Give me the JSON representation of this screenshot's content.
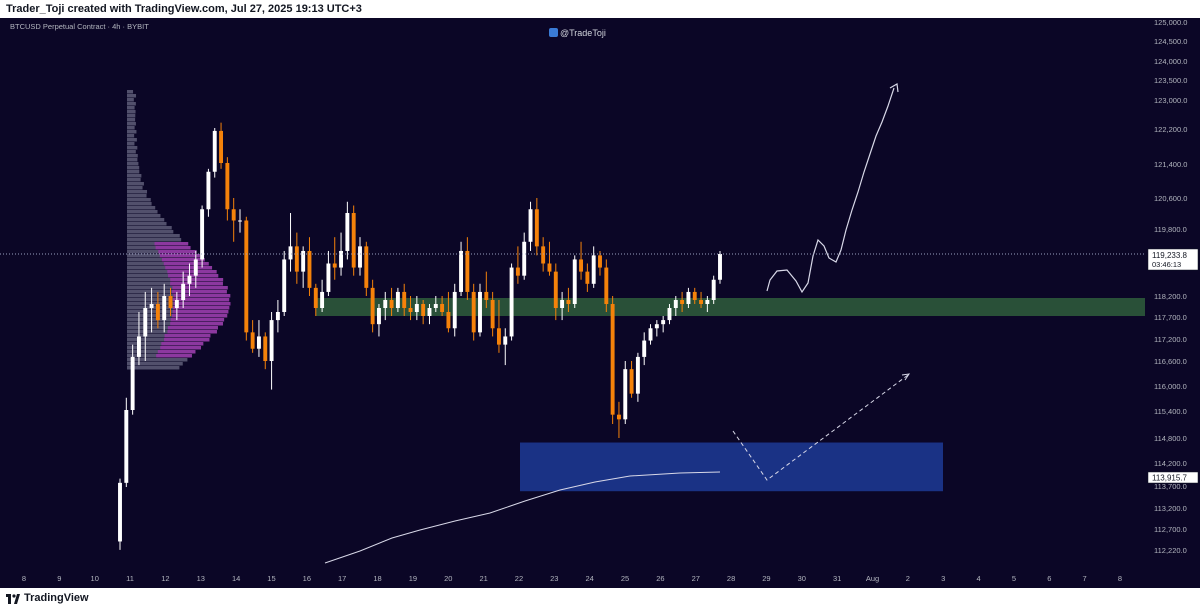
{
  "header": {
    "caption": "Trader_Toji created with TradingView.com, Jul 27, 2025 19:13 UTC+3"
  },
  "chart_header": {
    "symbol": "BTCUSD Perpetual Contract · 4h · BYBIT",
    "watermark": "@TradeToji"
  },
  "price_scale": {
    "ticks": [
      "125,000.0",
      "124,500.0",
      "124,000.0",
      "123,500.0",
      "123,000.0",
      "122,200.0",
      "121,400.0",
      "120,600.0",
      "119,800.0",
      "118,200.0",
      "117,700.0",
      "117,200.0",
      "116,600.0",
      "116,000.0",
      "115,400.0",
      "114,800.0",
      "114,200.0",
      "113,700.0",
      "113,200.0",
      "112,700.0",
      "112,220.0"
    ],
    "current_price": "119,233.8",
    "countdown": "03:46:13",
    "marked_price": "113,915.7"
  },
  "time_axis": {
    "labels": [
      "8",
      "9",
      "10",
      "11",
      "12",
      "13",
      "14",
      "15",
      "16",
      "17",
      "18",
      "19",
      "20",
      "21",
      "22",
      "23",
      "24",
      "25",
      "26",
      "27",
      "28",
      "29",
      "30",
      "31",
      "Aug",
      "2",
      "3",
      "4",
      "5",
      "6",
      "7",
      "8"
    ]
  },
  "footer": {
    "brand": "TradingView"
  },
  "chart_data": {
    "type": "candlestick",
    "symbol": "BTCUSD",
    "interval": "4h",
    "exchange": "BYBIT",
    "ylim": [
      112200,
      125000
    ],
    "last_price": 119233.8,
    "marked_price": 113915.7,
    "zones": [
      {
        "name": "support",
        "low": 117700,
        "high": 118150,
        "color": "#2f5e3c"
      },
      {
        "name": "demand",
        "low": 113600,
        "high": 114700,
        "color": "#1e3d9e"
      }
    ],
    "candles": [
      {
        "o": 112400,
        "h": 113900,
        "l": 112200,
        "c": 113800
      },
      {
        "o": 113800,
        "h": 115700,
        "l": 113700,
        "c": 115400
      },
      {
        "o": 115400,
        "h": 117000,
        "l": 115300,
        "c": 116700
      },
      {
        "o": 116700,
        "h": 117800,
        "l": 116500,
        "c": 117200
      },
      {
        "o": 117200,
        "h": 118300,
        "l": 116600,
        "c": 117900
      },
      {
        "o": 117900,
        "h": 118400,
        "l": 117300,
        "c": 118000
      },
      {
        "o": 118000,
        "h": 118300,
        "l": 117400,
        "c": 117600
      },
      {
        "o": 117600,
        "h": 118500,
        "l": 117300,
        "c": 118200
      },
      {
        "o": 118200,
        "h": 118400,
        "l": 117700,
        "c": 117900
      },
      {
        "o": 117900,
        "h": 118300,
        "l": 117600,
        "c": 118100
      },
      {
        "o": 118100,
        "h": 118800,
        "l": 117900,
        "c": 118500
      },
      {
        "o": 118500,
        "h": 119000,
        "l": 118200,
        "c": 118700
      },
      {
        "o": 118700,
        "h": 119300,
        "l": 118400,
        "c": 119100
      },
      {
        "o": 119100,
        "h": 120400,
        "l": 118900,
        "c": 120300
      },
      {
        "o": 120300,
        "h": 121600,
        "l": 120100,
        "c": 121500
      },
      {
        "o": 121500,
        "h": 123000,
        "l": 121300,
        "c": 122900
      },
      {
        "o": 122900,
        "h": 123100,
        "l": 121600,
        "c": 121800
      },
      {
        "o": 121800,
        "h": 122000,
        "l": 120000,
        "c": 120300
      },
      {
        "o": 120300,
        "h": 120600,
        "l": 119500,
        "c": 120000
      },
      {
        "o": 120000,
        "h": 120300,
        "l": 119700,
        "c": 120000
      },
      {
        "o": 120000,
        "h": 120100,
        "l": 117100,
        "c": 117300
      },
      {
        "o": 117300,
        "h": 117600,
        "l": 116800,
        "c": 116900
      },
      {
        "o": 116900,
        "h": 117600,
        "l": 116700,
        "c": 117200
      },
      {
        "o": 117200,
        "h": 117300,
        "l": 116400,
        "c": 116600
      },
      {
        "o": 116600,
        "h": 117800,
        "l": 115900,
        "c": 117600
      },
      {
        "o": 117600,
        "h": 118100,
        "l": 117300,
        "c": 117800
      },
      {
        "o": 117800,
        "h": 119300,
        "l": 117700,
        "c": 119100
      },
      {
        "o": 119100,
        "h": 120200,
        "l": 118800,
        "c": 119400
      },
      {
        "o": 119400,
        "h": 119700,
        "l": 118500,
        "c": 118800
      },
      {
        "o": 118800,
        "h": 119400,
        "l": 118400,
        "c": 119300
      },
      {
        "o": 119300,
        "h": 119600,
        "l": 118200,
        "c": 118400
      },
      {
        "o": 118400,
        "h": 118500,
        "l": 117700,
        "c": 117900
      },
      {
        "o": 117900,
        "h": 118600,
        "l": 117800,
        "c": 118300
      },
      {
        "o": 118300,
        "h": 119300,
        "l": 118200,
        "c": 119000
      },
      {
        "o": 119000,
        "h": 119600,
        "l": 118600,
        "c": 118900
      },
      {
        "o": 118900,
        "h": 119700,
        "l": 118700,
        "c": 119300
      },
      {
        "o": 119300,
        "h": 120500,
        "l": 119100,
        "c": 120200
      },
      {
        "o": 120200,
        "h": 120400,
        "l": 118700,
        "c": 118900
      },
      {
        "o": 118900,
        "h": 119600,
        "l": 118700,
        "c": 119400
      },
      {
        "o": 119400,
        "h": 119500,
        "l": 118200,
        "c": 118400
      },
      {
        "o": 118400,
        "h": 118600,
        "l": 117300,
        "c": 117500
      },
      {
        "o": 117500,
        "h": 118000,
        "l": 117200,
        "c": 117900
      },
      {
        "o": 117900,
        "h": 118300,
        "l": 117600,
        "c": 118100
      },
      {
        "o": 118100,
        "h": 118400,
        "l": 117700,
        "c": 117900
      },
      {
        "o": 117900,
        "h": 118400,
        "l": 117800,
        "c": 118300
      },
      {
        "o": 118300,
        "h": 118500,
        "l": 117700,
        "c": 117900
      },
      {
        "o": 117900,
        "h": 118200,
        "l": 117600,
        "c": 117800
      },
      {
        "o": 117800,
        "h": 118200,
        "l": 117600,
        "c": 118000
      },
      {
        "o": 118000,
        "h": 118100,
        "l": 117500,
        "c": 117700
      },
      {
        "o": 117700,
        "h": 118000,
        "l": 117500,
        "c": 117900
      },
      {
        "o": 117900,
        "h": 118200,
        "l": 117800,
        "c": 118000
      },
      {
        "o": 118000,
        "h": 118200,
        "l": 117700,
        "c": 117800
      },
      {
        "o": 117800,
        "h": 118300,
        "l": 117300,
        "c": 117400
      },
      {
        "o": 117400,
        "h": 118500,
        "l": 117200,
        "c": 118300
      },
      {
        "o": 118300,
        "h": 119500,
        "l": 118200,
        "c": 119300
      },
      {
        "o": 119300,
        "h": 119600,
        "l": 118100,
        "c": 118300
      },
      {
        "o": 118300,
        "h": 118500,
        "l": 117100,
        "c": 117300
      },
      {
        "o": 117300,
        "h": 118500,
        "l": 117200,
        "c": 118300
      },
      {
        "o": 118300,
        "h": 118800,
        "l": 117900,
        "c": 118100
      },
      {
        "o": 118100,
        "h": 118300,
        "l": 117200,
        "c": 117400
      },
      {
        "o": 117400,
        "h": 118100,
        "l": 116800,
        "c": 117000
      },
      {
        "o": 117000,
        "h": 117400,
        "l": 116500,
        "c": 117200
      },
      {
        "o": 117200,
        "h": 119000,
        "l": 117100,
        "c": 118900
      },
      {
        "o": 118900,
        "h": 119400,
        "l": 118500,
        "c": 118700
      },
      {
        "o": 118700,
        "h": 119700,
        "l": 118600,
        "c": 119500
      },
      {
        "o": 119500,
        "h": 120500,
        "l": 119300,
        "c": 120300
      },
      {
        "o": 120300,
        "h": 120600,
        "l": 119200,
        "c": 119400
      },
      {
        "o": 119400,
        "h": 119600,
        "l": 118800,
        "c": 119000
      },
      {
        "o": 119000,
        "h": 119500,
        "l": 118700,
        "c": 118800
      },
      {
        "o": 118800,
        "h": 119000,
        "l": 117600,
        "c": 117900
      },
      {
        "o": 117900,
        "h": 118300,
        "l": 117600,
        "c": 118100
      },
      {
        "o": 118100,
        "h": 118400,
        "l": 117800,
        "c": 118000
      },
      {
        "o": 118000,
        "h": 119200,
        "l": 117900,
        "c": 119100
      },
      {
        "o": 119100,
        "h": 119500,
        "l": 118600,
        "c": 118800
      },
      {
        "o": 118800,
        "h": 119000,
        "l": 118300,
        "c": 118500
      },
      {
        "o": 118500,
        "h": 119400,
        "l": 118400,
        "c": 119200
      },
      {
        "o": 119200,
        "h": 119300,
        "l": 118700,
        "c": 118900
      },
      {
        "o": 118900,
        "h": 119100,
        "l": 117800,
        "c": 118000
      },
      {
        "o": 118000,
        "h": 118200,
        "l": 115100,
        "c": 115300
      },
      {
        "o": 115300,
        "h": 115600,
        "l": 114800,
        "c": 115200
      },
      {
        "o": 115200,
        "h": 116600,
        "l": 115100,
        "c": 116400
      },
      {
        "o": 116400,
        "h": 116600,
        "l": 115700,
        "c": 115800
      },
      {
        "o": 115800,
        "h": 116800,
        "l": 115600,
        "c": 116700
      },
      {
        "o": 116700,
        "h": 117300,
        "l": 116500,
        "c": 117100
      },
      {
        "o": 117100,
        "h": 117500,
        "l": 117000,
        "c": 117400
      },
      {
        "o": 117400,
        "h": 117600,
        "l": 117200,
        "c": 117500
      },
      {
        "o": 117500,
        "h": 117700,
        "l": 117300,
        "c": 117600
      },
      {
        "o": 117600,
        "h": 118000,
        "l": 117500,
        "c": 117900
      },
      {
        "o": 117900,
        "h": 118200,
        "l": 117700,
        "c": 118100
      },
      {
        "o": 118100,
        "h": 118300,
        "l": 117800,
        "c": 118000
      },
      {
        "o": 118000,
        "h": 118400,
        "l": 117900,
        "c": 118300
      },
      {
        "o": 118300,
        "h": 118400,
        "l": 118000,
        "c": 118100
      },
      {
        "o": 118100,
        "h": 118300,
        "l": 117900,
        "c": 118000
      },
      {
        "o": 118000,
        "h": 118200,
        "l": 117800,
        "c": 118100
      },
      {
        "o": 118100,
        "h": 118700,
        "l": 118000,
        "c": 118600
      },
      {
        "o": 118600,
        "h": 119300,
        "l": 118500,
        "c": 119233.8
      }
    ],
    "colors": {
      "up": "#ffffff",
      "down": "#f5820a",
      "background": "#0b0626",
      "volume_profile": "#8e8ea6",
      "value_area": "#a030b0",
      "projection": "#d8d8e8"
    }
  }
}
